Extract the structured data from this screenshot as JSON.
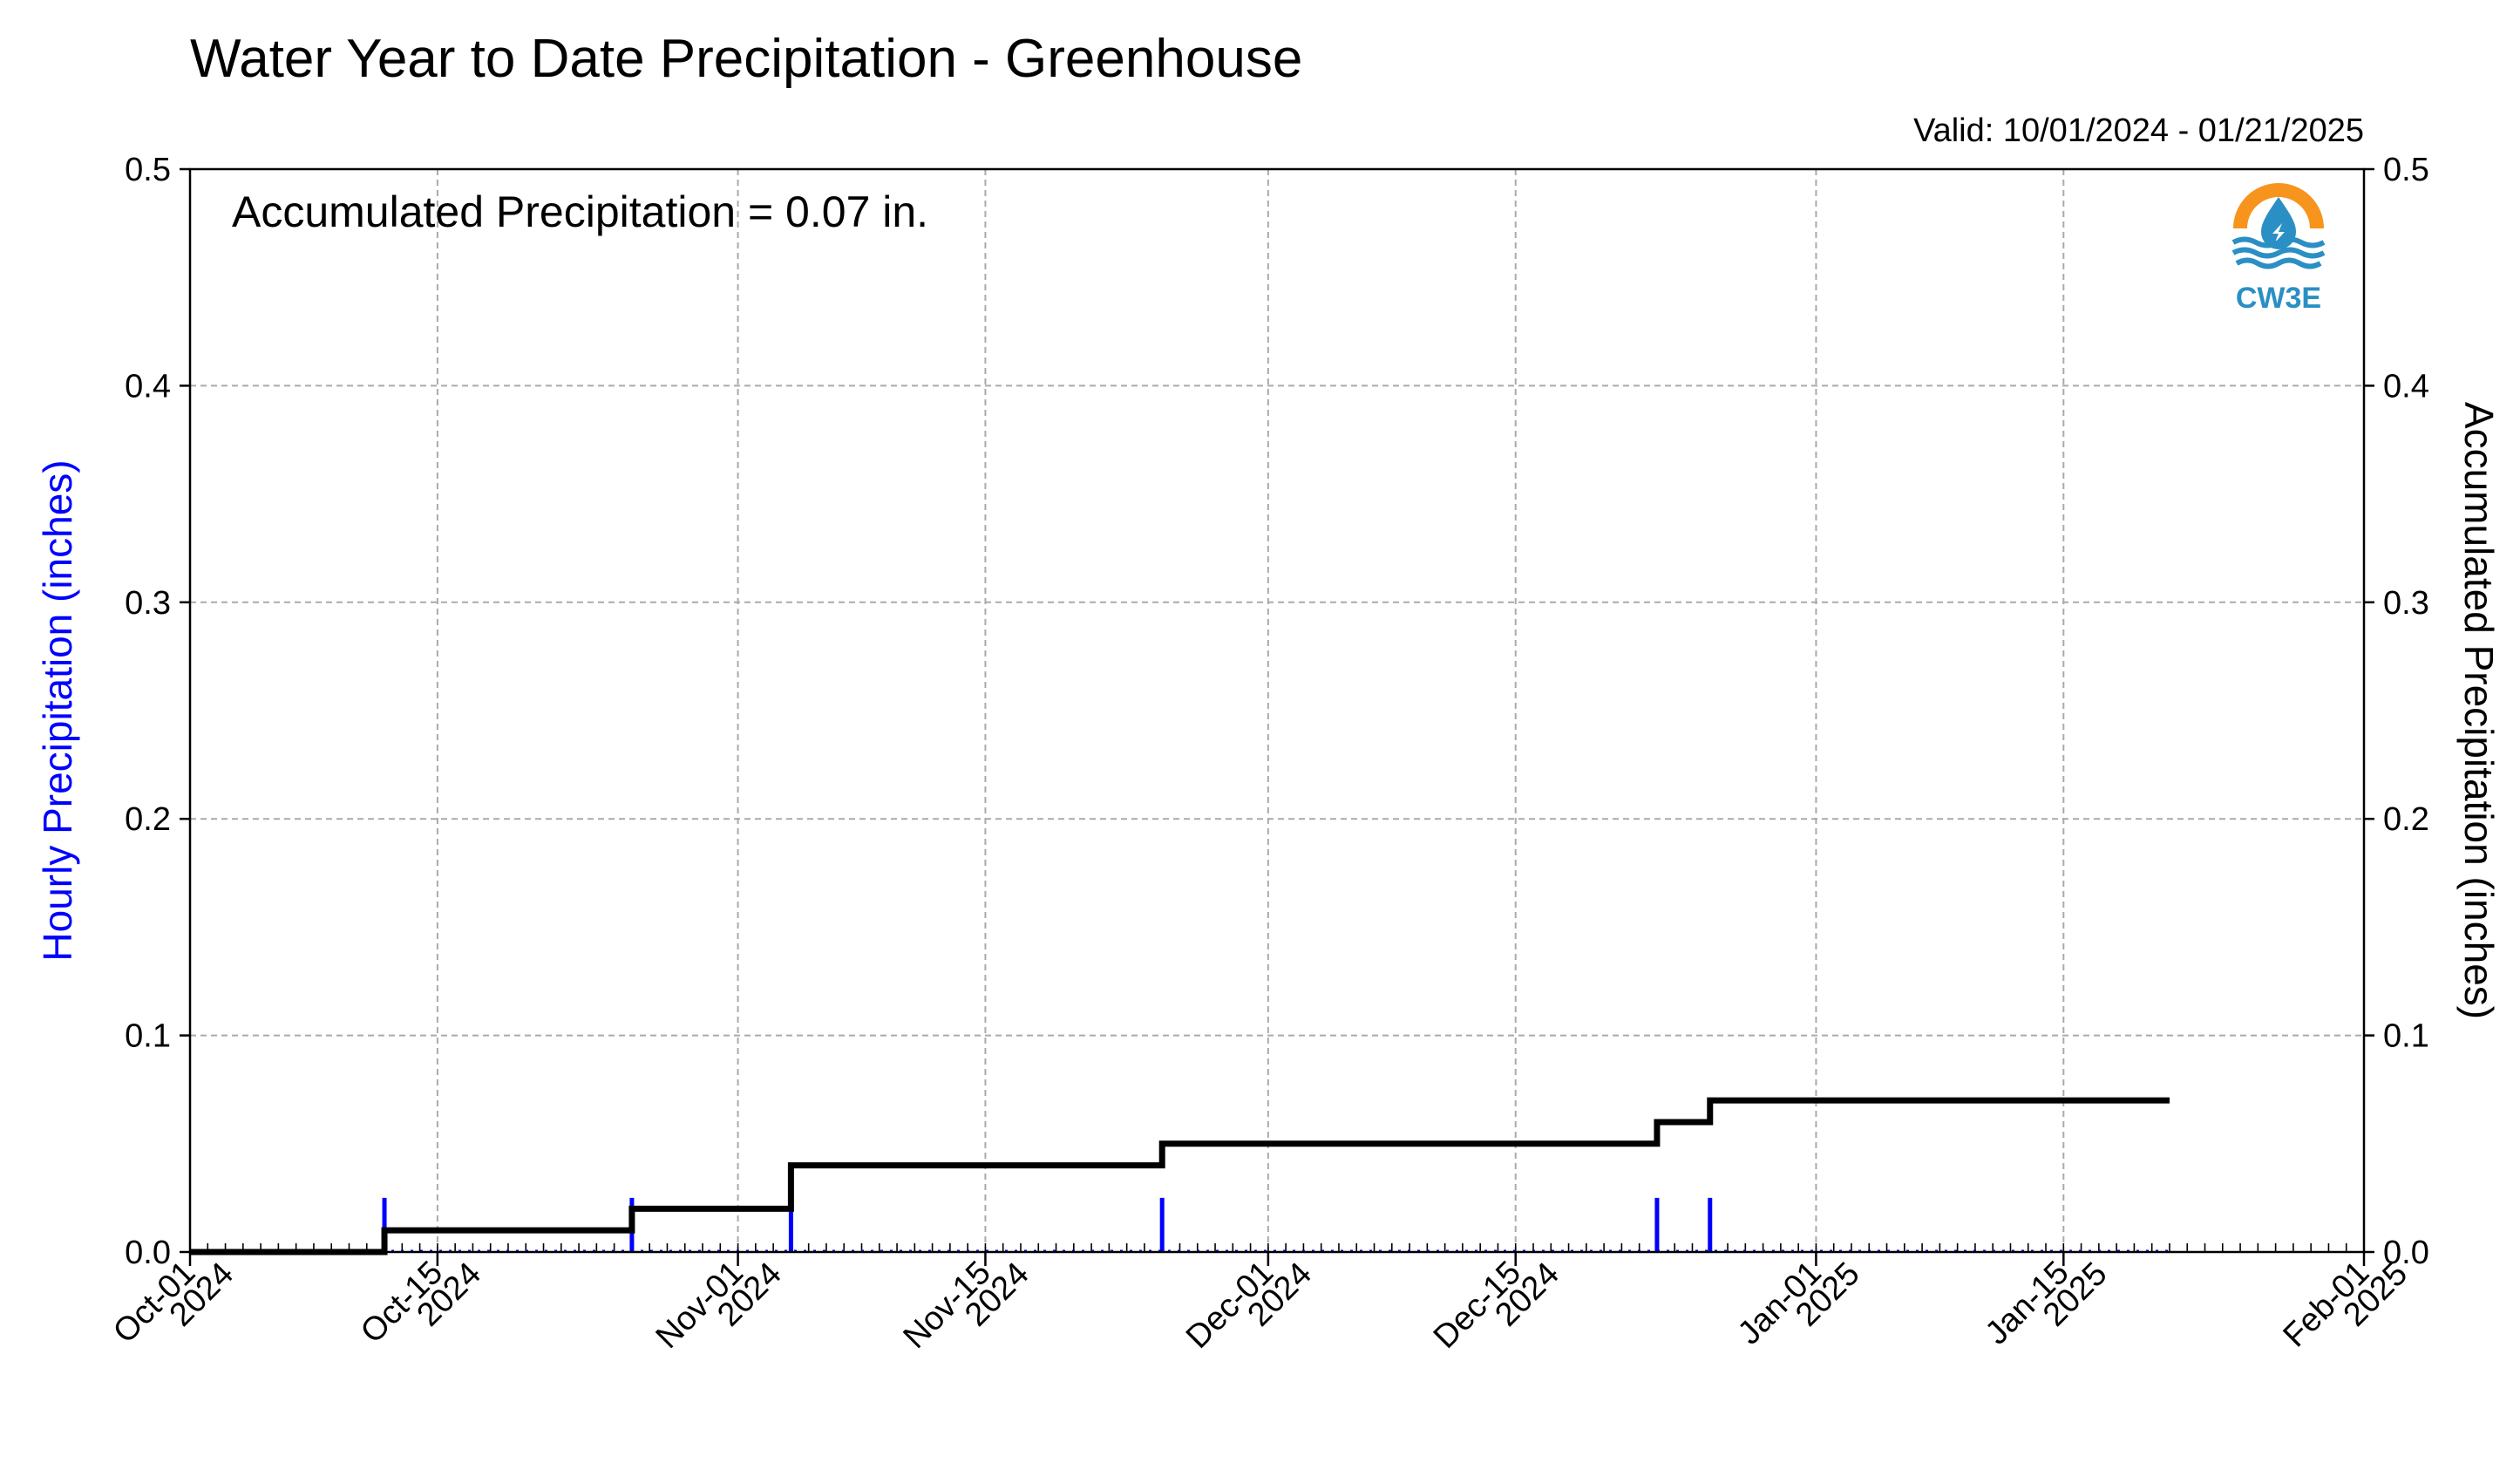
{
  "chart_data": {
    "type": "line",
    "title": "Water Year to Date Precipitation - Greenhouse",
    "valid_label": "Valid: 10/01/2024 - 01/21/2025",
    "annotation": "Accumulated Precipitation = 0.07 in.",
    "ylabel_left": "Hourly Precipitation (inches)",
    "ylabel_right": "Accumulated Precipitation (inches)",
    "logo_text": "CW3E",
    "xlim": [
      "2024-10-01",
      "2025-02-01"
    ],
    "ylim": [
      0.0,
      0.5
    ],
    "y_ticks": [
      "0.0",
      "0.1",
      "0.2",
      "0.3",
      "0.4",
      "0.5"
    ],
    "x_ticks": [
      {
        "date": "2024-10-01",
        "line1": "Oct-01",
        "line2": "2024"
      },
      {
        "date": "2024-10-15",
        "line1": "Oct-15",
        "line2": "2024"
      },
      {
        "date": "2024-11-01",
        "line1": "Nov-01",
        "line2": "2024"
      },
      {
        "date": "2024-11-15",
        "line1": "Nov-15",
        "line2": "2024"
      },
      {
        "date": "2024-12-01",
        "line1": "Dec-01",
        "line2": "2024"
      },
      {
        "date": "2024-12-15",
        "line1": "Dec-15",
        "line2": "2024"
      },
      {
        "date": "2025-01-01",
        "line1": "Jan-01",
        "line2": "2025"
      },
      {
        "date": "2025-01-15",
        "line1": "Jan-15",
        "line2": "2025"
      },
      {
        "date": "2025-02-01",
        "line1": "Feb-01",
        "line2": "2025"
      }
    ],
    "grid": true,
    "colors": {
      "hourly": "#0000ff",
      "accumulated": "#000000",
      "grid": "#aaaaaa",
      "logo_orange": "#f7941d",
      "logo_blue": "#2a8fc4"
    },
    "series": [
      {
        "name": "Accumulated Precipitation (inches)",
        "axis": "right",
        "step": true,
        "x": [
          "2024-10-01",
          "2024-10-12",
          "2024-10-26",
          "2024-11-04",
          "2024-11-25",
          "2024-12-23",
          "2024-12-26",
          "2025-01-21"
        ],
        "y": [
          0.0,
          0.01,
          0.02,
          0.04,
          0.05,
          0.06,
          0.07,
          0.07
        ]
      },
      {
        "name": "Hourly Precipitation (inches)",
        "axis": "left",
        "type": "bar",
        "x": [
          "2024-10-12",
          "2024-10-26",
          "2024-11-04",
          "2024-11-25",
          "2024-12-23",
          "2024-12-26"
        ],
        "y": [
          0.01,
          0.01,
          0.01,
          0.01,
          0.01,
          0.01
        ]
      }
    ]
  }
}
